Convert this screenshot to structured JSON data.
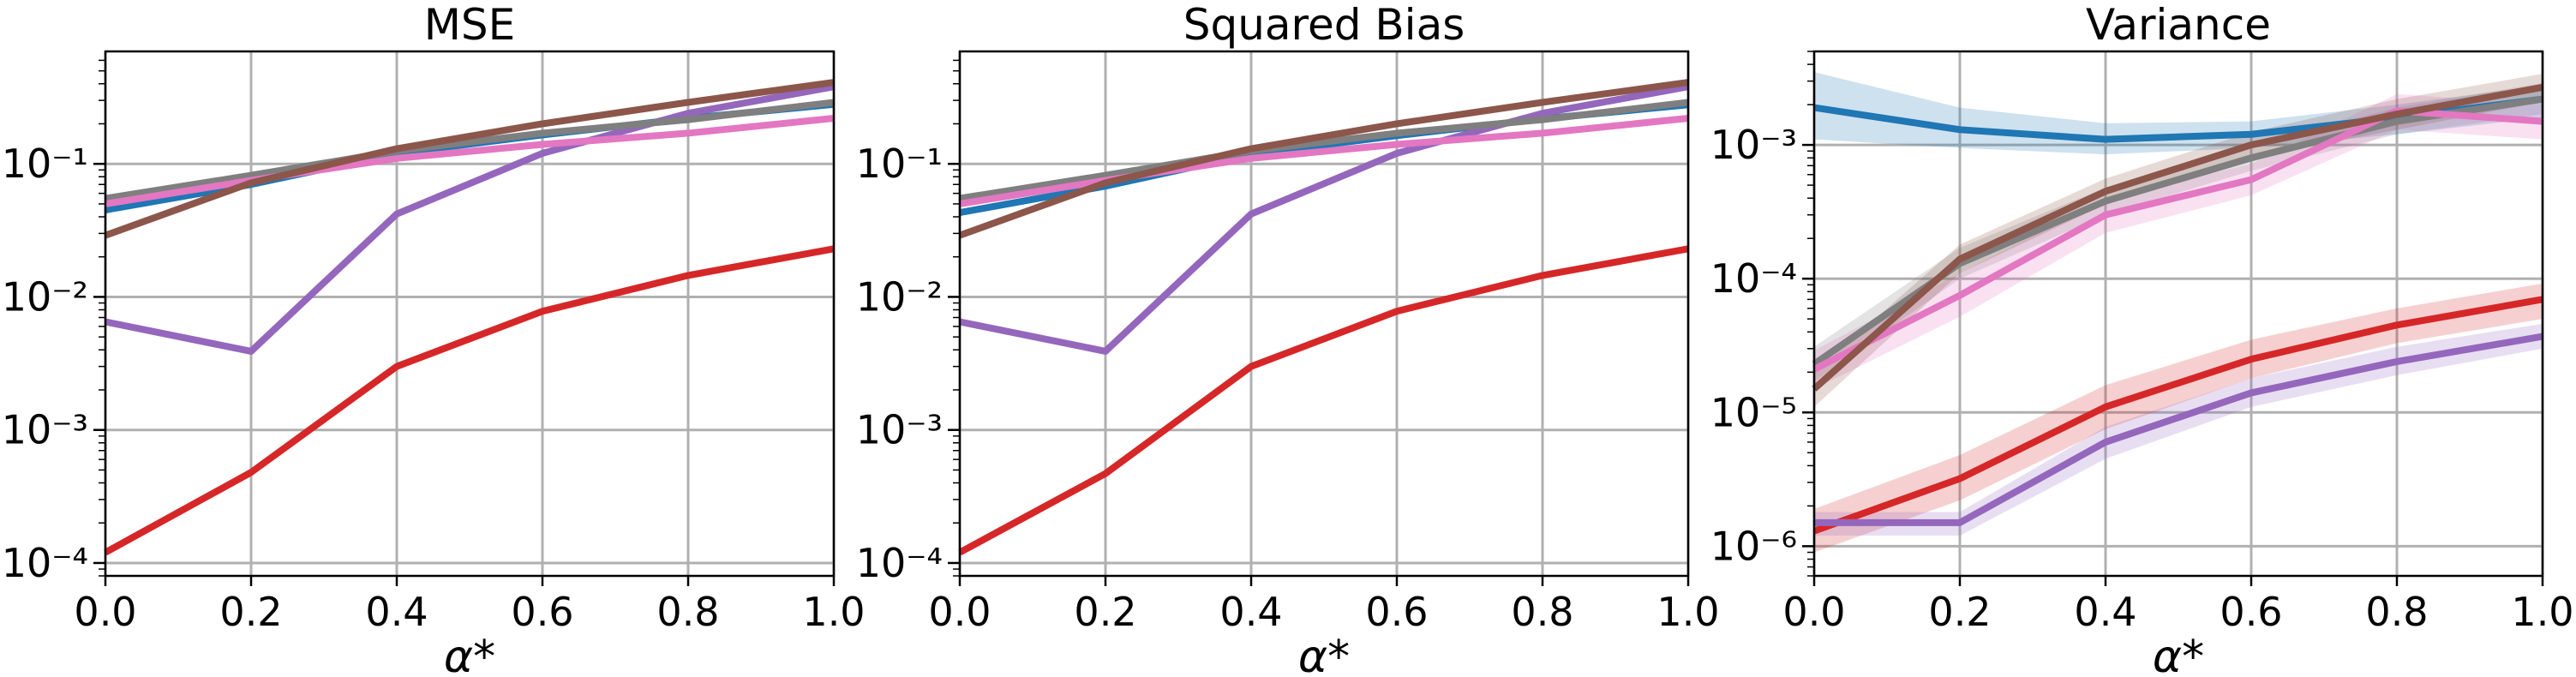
{
  "chart_data": [
    {
      "type": "line",
      "title": "MSE",
      "xlabel": "α*",
      "ylabel": "",
      "yscale": "log",
      "xlim": [
        0.0,
        1.0
      ],
      "ylim": [
        8e-05,
        0.7
      ],
      "grid": true,
      "x": [
        0.0,
        0.2,
        0.4,
        0.6,
        0.8,
        1.0
      ],
      "xticklabels": [
        "0.0",
        "0.2",
        "0.4",
        "0.6",
        "0.8",
        "1.0"
      ],
      "yticks": [
        0.0001,
        0.001,
        0.01,
        0.1
      ],
      "series": [
        {
          "color": "#1f77b4",
          "values": [
            0.045,
            0.07,
            0.12,
            0.165,
            0.22,
            0.28
          ]
        },
        {
          "color": "#d62728",
          "values": [
            0.00012,
            0.00048,
            0.003,
            0.0078,
            0.0145,
            0.023
          ]
        },
        {
          "color": "#9467bd",
          "values": [
            0.0065,
            0.0039,
            0.042,
            0.12,
            0.24,
            0.38
          ]
        },
        {
          "color": "#7f7f7f",
          "values": [
            0.055,
            0.082,
            0.125,
            0.17,
            0.215,
            0.29
          ]
        },
        {
          "color": "#e377c2",
          "values": [
            0.05,
            0.075,
            0.11,
            0.14,
            0.17,
            0.22
          ]
        },
        {
          "color": "#8c564b",
          "values": [
            0.029,
            0.072,
            0.13,
            0.2,
            0.29,
            0.41
          ]
        }
      ]
    },
    {
      "type": "line",
      "title": "Squared Bias",
      "xlabel": "α*",
      "ylabel": "",
      "yscale": "log",
      "xlim": [
        0.0,
        1.0
      ],
      "ylim": [
        8e-05,
        0.7
      ],
      "grid": true,
      "x": [
        0.0,
        0.2,
        0.4,
        0.6,
        0.8,
        1.0
      ],
      "xticklabels": [
        "0.0",
        "0.2",
        "0.4",
        "0.6",
        "0.8",
        "1.0"
      ],
      "yticks": [
        0.0001,
        0.001,
        0.01,
        0.1
      ],
      "series": [
        {
          "color": "#1f77b4",
          "values": [
            0.043,
            0.068,
            0.118,
            0.163,
            0.218,
            0.278
          ]
        },
        {
          "color": "#d62728",
          "values": [
            0.00012,
            0.00047,
            0.003,
            0.0078,
            0.0145,
            0.023
          ]
        },
        {
          "color": "#9467bd",
          "values": [
            0.0065,
            0.0039,
            0.042,
            0.12,
            0.24,
            0.38
          ]
        },
        {
          "color": "#7f7f7f",
          "values": [
            0.055,
            0.082,
            0.125,
            0.17,
            0.215,
            0.29
          ]
        },
        {
          "color": "#e377c2",
          "values": [
            0.05,
            0.075,
            0.11,
            0.14,
            0.17,
            0.22
          ]
        },
        {
          "color": "#8c564b",
          "values": [
            0.029,
            0.072,
            0.13,
            0.2,
            0.29,
            0.41
          ]
        }
      ]
    },
    {
      "type": "line",
      "title": "Variance",
      "xlabel": "α*",
      "ylabel": "",
      "yscale": "log",
      "xlim": [
        0.0,
        1.0
      ],
      "ylim": [
        6e-07,
        0.005
      ],
      "grid": true,
      "x": [
        0.0,
        0.2,
        0.4,
        0.6,
        0.8,
        1.0
      ],
      "xticklabels": [
        "0.0",
        "0.2",
        "0.4",
        "0.6",
        "0.8",
        "1.0"
      ],
      "yticks": [
        1e-06,
        1e-05,
        0.0001,
        0.001
      ],
      "series": [
        {
          "color": "#1f77b4",
          "values": [
            0.0019,
            0.0013,
            0.0011,
            0.0012,
            0.0016,
            0.0022
          ],
          "lower": [
            0.0011,
            0.00095,
            0.00085,
            0.00095,
            0.0012,
            0.0016
          ],
          "upper": [
            0.0035,
            0.0019,
            0.00145,
            0.0015,
            0.002,
            0.0028
          ]
        },
        {
          "color": "#d62728",
          "values": [
            1.3e-06,
            3.2e-06,
            1.1e-05,
            2.5e-05,
            4.5e-05,
            7e-05
          ],
          "lower": [
            9e-07,
            2.2e-06,
            7.5e-06,
            1.8e-05,
            3.3e-05,
            5e-05
          ],
          "upper": [
            1.9e-06,
            4.8e-06,
            1.6e-05,
            3.5e-05,
            6e-05,
            9.2e-05
          ]
        },
        {
          "color": "#9467bd",
          "values": [
            1.5e-06,
            1.5e-06,
            6e-06,
            1.4e-05,
            2.4e-05,
            3.7e-05
          ],
          "lower": [
            1.2e-06,
            1.2e-06,
            4.5e-06,
            1.1e-05,
            1.9e-05,
            3e-05
          ],
          "upper": [
            1.8e-06,
            1.8e-06,
            7.8e-06,
            1.8e-05,
            3.1e-05,
            4.6e-05
          ]
        },
        {
          "color": "#7f7f7f",
          "values": [
            2.3e-05,
            0.00013,
            0.00038,
            0.0008,
            0.0015,
            0.0022
          ],
          "lower": [
            1.7e-05,
            0.0001,
            0.0003,
            0.00064,
            0.0012,
            0.0017
          ],
          "upper": [
            3.1e-05,
            0.00017,
            0.00048,
            0.001,
            0.0019,
            0.0029
          ]
        },
        {
          "color": "#e377c2",
          "values": [
            2.1e-05,
            7.5e-05,
            0.0003,
            0.00055,
            0.0018,
            0.0015
          ],
          "lower": [
            1.5e-05,
            5.2e-05,
            0.00022,
            0.00042,
            0.0013,
            0.0011
          ],
          "upper": [
            2.9e-05,
            0.00011,
            0.0004,
            0.00072,
            0.0024,
            0.002
          ]
        },
        {
          "color": "#8c564b",
          "values": [
            1.5e-05,
            0.00014,
            0.00045,
            0.001,
            0.0017,
            0.0027
          ],
          "lower": [
            1.1e-05,
            0.00011,
            0.00036,
            0.0008,
            0.0013,
            0.0021
          ],
          "upper": [
            2e-05,
            0.00018,
            0.00056,
            0.00125,
            0.0022,
            0.0034
          ]
        }
      ]
    }
  ]
}
